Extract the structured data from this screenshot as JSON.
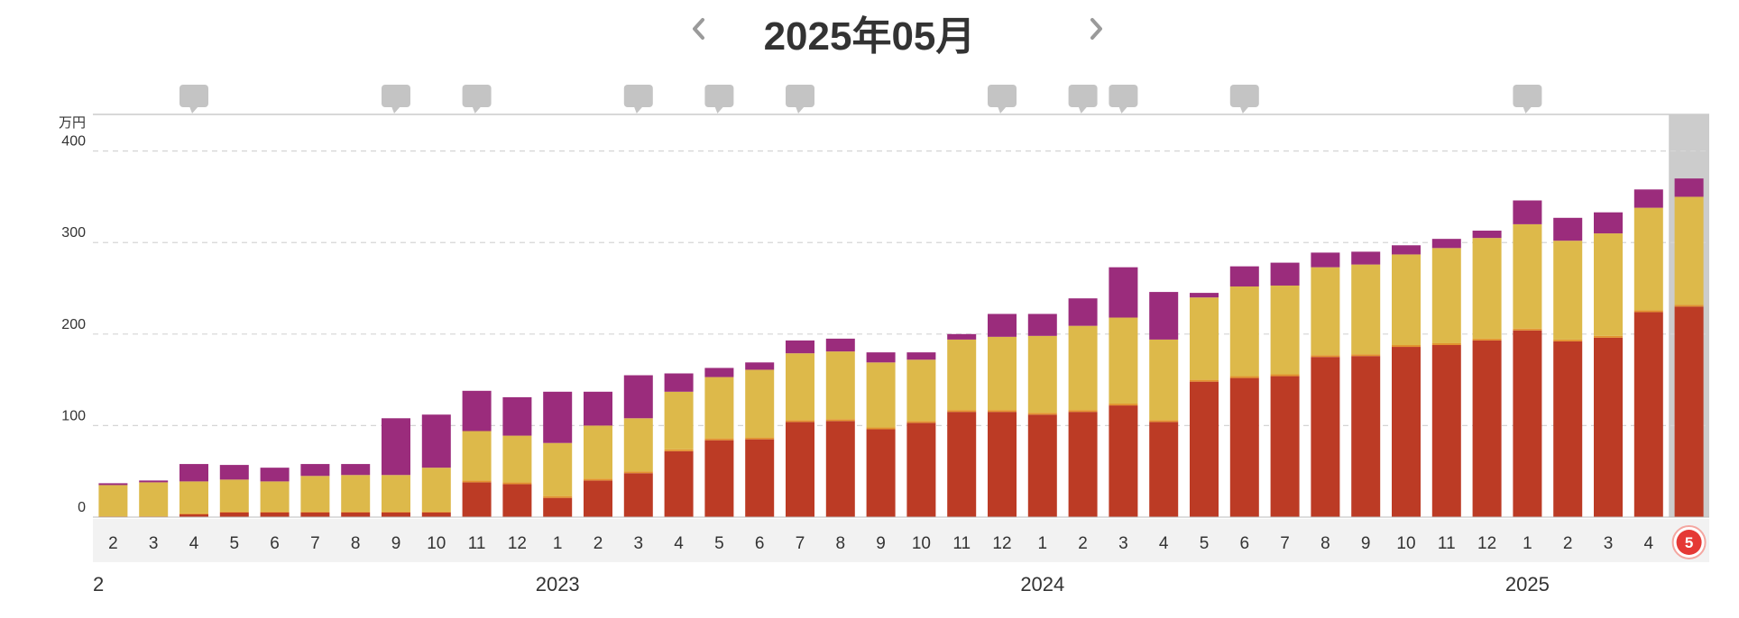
{
  "header": {
    "title": "2025年05月"
  },
  "colors": {
    "series_bottom": "#bc3b25",
    "series_mid": "#ddb94a",
    "series_top": "#9b2c7c",
    "thin_line": "#e2932f",
    "selected_column": "#cccccc",
    "selected_badge": "#e53935",
    "comment_icon": "#c4c4c4",
    "month_axis_bg": "#f2f2f2"
  },
  "chart_data": {
    "type": "bar",
    "stacked": true,
    "unit": "万円",
    "ylim": [
      0,
      440
    ],
    "yticks": [
      0,
      100,
      200,
      300,
      400
    ],
    "grid": true,
    "categories": [
      "2",
      "3",
      "4",
      "5",
      "6",
      "7",
      "8",
      "9",
      "10",
      "11",
      "12",
      "1",
      "2",
      "3",
      "4",
      "5",
      "6",
      "7",
      "8",
      "9",
      "10",
      "11",
      "12",
      "1",
      "2",
      "3",
      "4",
      "5",
      "6",
      "7",
      "8",
      "9",
      "10",
      "11",
      "12",
      "1",
      "2",
      "3",
      "4",
      "5"
    ],
    "year_labels": [
      {
        "label": "2",
        "index": 0
      },
      {
        "label": "2023",
        "index": 11
      },
      {
        "label": "2024",
        "index": 23
      },
      {
        "label": "2025",
        "index": 35
      }
    ],
    "series": [
      {
        "values": [
          0,
          0,
          3,
          5,
          5,
          5,
          5,
          5,
          5,
          38,
          36,
          21,
          40,
          48,
          72,
          84,
          85,
          104,
          105,
          96,
          103,
          115,
          115,
          112,
          115,
          122,
          104,
          148,
          152,
          154,
          175,
          176,
          186,
          188,
          193,
          204,
          192,
          196,
          224,
          230
        ]
      },
      {
        "values": [
          1,
          1,
          1,
          1,
          1,
          1,
          1,
          1,
          1,
          2,
          2,
          2,
          2,
          2,
          2,
          2,
          2,
          2,
          2,
          2,
          2,
          2,
          2,
          2,
          2,
          2,
          2,
          2,
          2,
          2,
          2,
          2,
          2,
          2,
          2,
          2,
          2,
          2,
          2,
          2
        ]
      },
      {
        "values": [
          34,
          37,
          35,
          35,
          33,
          39,
          40,
          40,
          48,
          54,
          51,
          58,
          58,
          58,
          63,
          67,
          74,
          73,
          74,
          71,
          67,
          77,
          80,
          84,
          92,
          94,
          88,
          90,
          98,
          97,
          96,
          98,
          99,
          104,
          110,
          114,
          108,
          112,
          112,
          118
        ]
      },
      {
        "values": [
          2,
          2,
          19,
          16,
          15,
          13,
          12,
          62,
          58,
          44,
          42,
          56,
          37,
          47,
          20,
          10,
          8,
          14,
          14,
          11,
          8,
          6,
          25,
          24,
          30,
          55,
          52,
          5,
          22,
          25,
          16,
          14,
          10,
          10,
          8,
          26,
          25,
          23,
          20,
          20
        ]
      }
    ],
    "comment_markers": [
      2,
      7,
      9,
      13,
      15,
      17,
      22,
      24,
      25,
      28,
      35
    ],
    "selected_index": 39,
    "selected_label": "5"
  }
}
